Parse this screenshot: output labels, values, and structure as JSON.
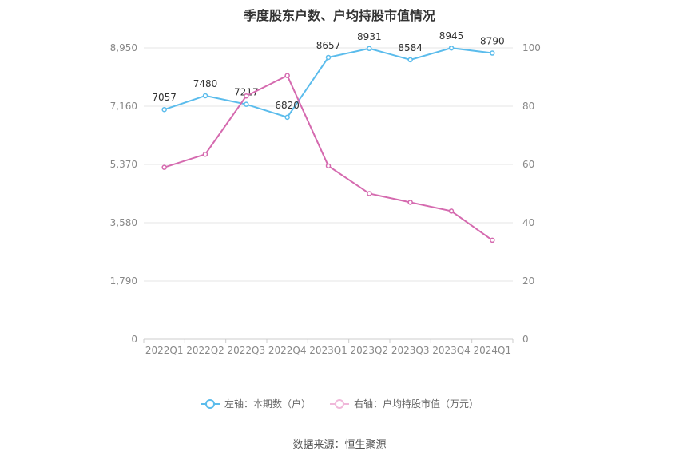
{
  "title": "季度股东户数、户均持股市值情况",
  "source_text": "数据来源：恒生聚源",
  "colors": {
    "left_series": "#5bbcec",
    "right_series": "#d56aaf",
    "grid": "#e6e6e6",
    "axis_text": "#888888"
  },
  "chart_data": {
    "type": "line",
    "categories": [
      "2022Q1",
      "2022Q2",
      "2022Q3",
      "2022Q4",
      "2023Q1",
      "2023Q2",
      "2023Q3",
      "2023Q4",
      "2024Q1"
    ],
    "left_axis": {
      "ticks": [
        "0",
        "1,790",
        "3,580",
        "5,370",
        "7,160",
        "8,950"
      ],
      "ylim": [
        0,
        8950
      ]
    },
    "right_axis": {
      "ticks": [
        "0",
        "20",
        "40",
        "60",
        "80",
        "100"
      ],
      "ylim": [
        0,
        100
      ]
    },
    "series": [
      {
        "name": "左轴：本期数（户）",
        "axis": "left",
        "values": [
          7057,
          7480,
          7217,
          6820,
          8657,
          8931,
          8584,
          8945,
          8790
        ],
        "labels": [
          "7057",
          "7480",
          "7217",
          "6820",
          "8657",
          "8931",
          "8584",
          "8945",
          "8790"
        ]
      },
      {
        "name": "右轴：户均持股市值（万元）",
        "axis": "right",
        "values": [
          59,
          63.5,
          83.5,
          90.5,
          59.5,
          50,
          47,
          44,
          34
        ]
      }
    ],
    "grid": true,
    "legend_position": "bottom-center"
  }
}
